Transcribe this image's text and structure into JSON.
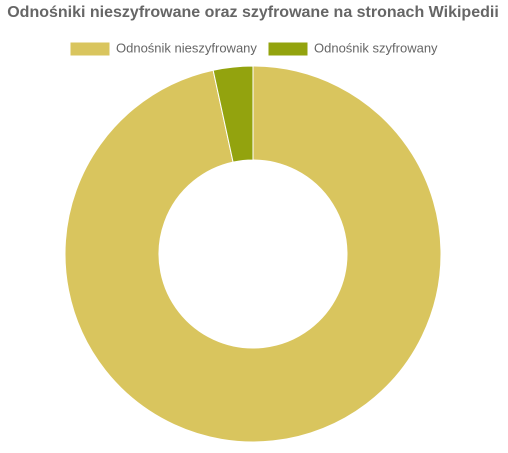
{
  "chart_data": {
    "type": "donut",
    "title": "Odnośniki nieszyfrowane oraz szyfrowane na stronach Wikipedii",
    "categories": [
      "Odnośnik nieszyfrowany",
      "Odnośnik szyfrowany"
    ],
    "values": [
      96.6,
      3.4
    ],
    "colors": [
      "#d9c55e",
      "#93a30e"
    ]
  }
}
